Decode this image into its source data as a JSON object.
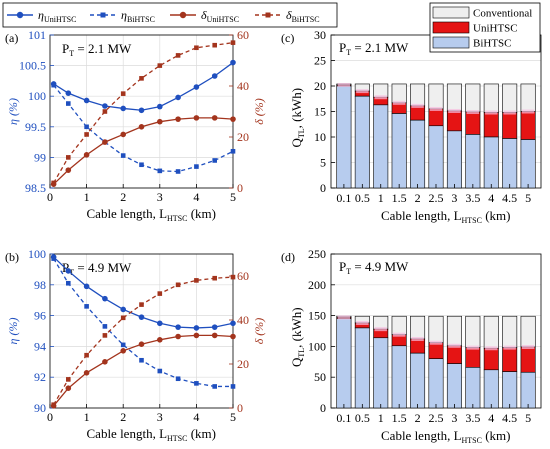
{
  "legend_top": {
    "items": [
      {
        "label": "η",
        "sub": "UniHTSC",
        "color": "#1f4fbf",
        "dash": "solid",
        "marker": "circle"
      },
      {
        "label": "η",
        "sub": "BiHTSC",
        "color": "#1f4fbf",
        "dash": "dash",
        "marker": "square"
      },
      {
        "label": "δ",
        "sub": "UniHTSC",
        "color": "#a3341d",
        "dash": "solid",
        "marker": "circle"
      },
      {
        "label": "δ",
        "sub": "BiHTSC",
        "color": "#a3341d",
        "dash": "dash",
        "marker": "square"
      }
    ]
  },
  "legend_bar": {
    "items": [
      {
        "label": "Conventional",
        "color": "#efefef"
      },
      {
        "label": "UniHTSC",
        "color": "#e51414"
      },
      {
        "label": "BiHTSC",
        "color": "#b7ccee"
      }
    ]
  },
  "colors": {
    "eta": "#1f4fbf",
    "delta": "#a3341d",
    "conventional": "#efefef",
    "uni": "#e51414",
    "bi": "#b7ccee",
    "errorbar": "#f8bde0"
  },
  "chart_data": [
    {
      "id": "a",
      "panel_label": "(a)",
      "power_label": "P",
      "power_sub": "T",
      "power_value": " = 2.1 MW",
      "type": "line",
      "xlabel": "Cable length, L",
      "xlabel_sub": "HTSC",
      "xlabel_unit": " (km)",
      "ylabel_left": "η (%)",
      "ylabel_right": "δ (%)",
      "xlim": [
        0,
        5
      ],
      "ylim_left": [
        98.5,
        101
      ],
      "ylim_right": [
        0,
        60
      ],
      "xticks": [
        0,
        1,
        2,
        3,
        4,
        5
      ],
      "yticks_left": [
        98.5,
        99,
        99.5,
        100,
        100.5,
        101
      ],
      "ytick_labels_left": [
        "98.5",
        "99",
        "99.5",
        "100",
        "100.5",
        "101"
      ],
      "yticks_right": [
        0,
        20,
        40,
        60
      ],
      "x": [
        0.1,
        0.5,
        1,
        1.5,
        2,
        2.5,
        3,
        3.5,
        4,
        4.5,
        5
      ],
      "series": [
        {
          "name": "η_UniHTSC",
          "axis": "left",
          "values": [
            100.2,
            100.05,
            99.93,
            99.84,
            99.8,
            99.77,
            99.83,
            99.98,
            100.15,
            100.33,
            100.55
          ]
        },
        {
          "name": "η_BiHTSC",
          "axis": "left",
          "values": [
            100.18,
            99.88,
            99.5,
            99.25,
            99.03,
            98.88,
            98.78,
            98.77,
            98.85,
            98.95,
            99.1
          ]
        },
        {
          "name": "δ_UniHTSC",
          "axis": "right",
          "values": [
            1.5,
            7,
            13,
            18,
            21,
            24,
            26,
            27,
            27.5,
            27.5,
            27
          ]
        },
        {
          "name": "δ_BiHTSC",
          "axis": "right",
          "values": [
            2,
            12,
            21,
            30,
            37,
            43,
            48,
            52,
            55,
            56,
            57
          ]
        }
      ]
    },
    {
      "id": "b",
      "panel_label": "(b)",
      "power_label": "P",
      "power_sub": "T",
      "power_value": " = 4.9 MW",
      "type": "line",
      "xlabel": "Cable length, L",
      "xlabel_sub": "HTSC",
      "xlabel_unit": " (km)",
      "ylabel_left": "η (%)",
      "ylabel_right": "δ (%)",
      "xlim": [
        0,
        5
      ],
      "ylim_left": [
        90,
        100
      ],
      "ylim_right": [
        0,
        70
      ],
      "xticks": [
        0,
        1,
        2,
        3,
        4,
        5
      ],
      "yticks_left": [
        90,
        92,
        94,
        96,
        98,
        100
      ],
      "ytick_labels_left": [
        "90",
        "92",
        "94",
        "96",
        "98",
        "100"
      ],
      "yticks_right": [
        0,
        20,
        40,
        60
      ],
      "x": [
        0.1,
        0.5,
        1,
        1.5,
        2,
        2.5,
        3,
        3.5,
        4,
        4.5,
        5
      ],
      "series": [
        {
          "name": "η_UniHTSC",
          "axis": "left",
          "values": [
            99.8,
            98.9,
            97.9,
            97.1,
            96.4,
            95.9,
            95.5,
            95.25,
            95.2,
            95.25,
            95.5
          ]
        },
        {
          "name": "η_BiHTSC",
          "axis": "left",
          "values": [
            99.7,
            98.1,
            96.6,
            95.3,
            94.1,
            93.1,
            92.4,
            91.9,
            91.6,
            91.4,
            91.4
          ]
        },
        {
          "name": "δ_UniHTSC",
          "axis": "right",
          "values": [
            1,
            9,
            16,
            21,
            26,
            29,
            31,
            32.5,
            33,
            33,
            32.5
          ]
        },
        {
          "name": "δ_BiHTSC",
          "axis": "right",
          "values": [
            1.5,
            13,
            24,
            33,
            41,
            47,
            52,
            56,
            58,
            59,
            59.5
          ]
        }
      ]
    },
    {
      "id": "c",
      "panel_label": "(c)",
      "power_label": "P",
      "power_sub": "T",
      "power_value": " = 2.1 MW",
      "type": "bar",
      "xlabel": "Cable length, L",
      "xlabel_sub": "HTSC",
      "xlabel_unit": " (km)",
      "ylabel": "Q",
      "ylabel_sub": "TL",
      "ylabel_unit": ", (kWh)",
      "categories": [
        "0.1",
        "0.5",
        "1",
        "1.5",
        "2",
        "2.5",
        "3",
        "3.5",
        "4",
        "4.5",
        "5"
      ],
      "ylim": [
        0,
        30
      ],
      "yticks": [
        0,
        5,
        10,
        15,
        20,
        25,
        30
      ],
      "series": [
        {
          "name": "BiHTSC",
          "values": [
            20.0,
            18.0,
            16.3,
            14.6,
            13.3,
            12.2,
            11.2,
            10.5,
            10.0,
            9.7,
            9.5
          ]
        },
        {
          "name": "UniHTSC",
          "values": [
            20.2,
            19.0,
            17.8,
            16.7,
            16.1,
            15.5,
            15.1,
            14.9,
            14.8,
            14.8,
            15.0
          ]
        },
        {
          "name": "Conventional",
          "values": [
            20.4,
            20.4,
            20.4,
            20.4,
            20.4,
            20.4,
            20.4,
            20.4,
            20.4,
            20.4,
            20.4
          ]
        }
      ]
    },
    {
      "id": "d",
      "panel_label": "(d)",
      "power_label": "P",
      "power_sub": "T",
      "power_value": " = 4.9 MW",
      "type": "bar",
      "xlabel": "Cable length, L",
      "xlabel_sub": "HTSC",
      "xlabel_unit": " (km)",
      "ylabel": "Q",
      "ylabel_sub": "TL",
      "ylabel_unit": ", (kWh)",
      "categories": [
        "0.1",
        "0.5",
        "1",
        "1.5",
        "2",
        "2.5",
        "3",
        "3.5",
        "4",
        "4.5",
        "5"
      ],
      "ylim": [
        0,
        250
      ],
      "yticks": [
        0,
        50,
        100,
        150,
        200,
        250
      ],
      "series": [
        {
          "name": "BiHTSC",
          "values": [
            145,
            130,
            114,
            101,
            89,
            80,
            72,
            66,
            62,
            59,
            58
          ]
        },
        {
          "name": "UniHTSC",
          "values": [
            147,
            138,
            128,
            119,
            112,
            106,
            101,
            98,
            97,
            98,
            99
          ]
        },
        {
          "name": "Conventional",
          "values": [
            149,
            149,
            149,
            149,
            149,
            149,
            149,
            149,
            149,
            149,
            149
          ]
        }
      ]
    }
  ]
}
